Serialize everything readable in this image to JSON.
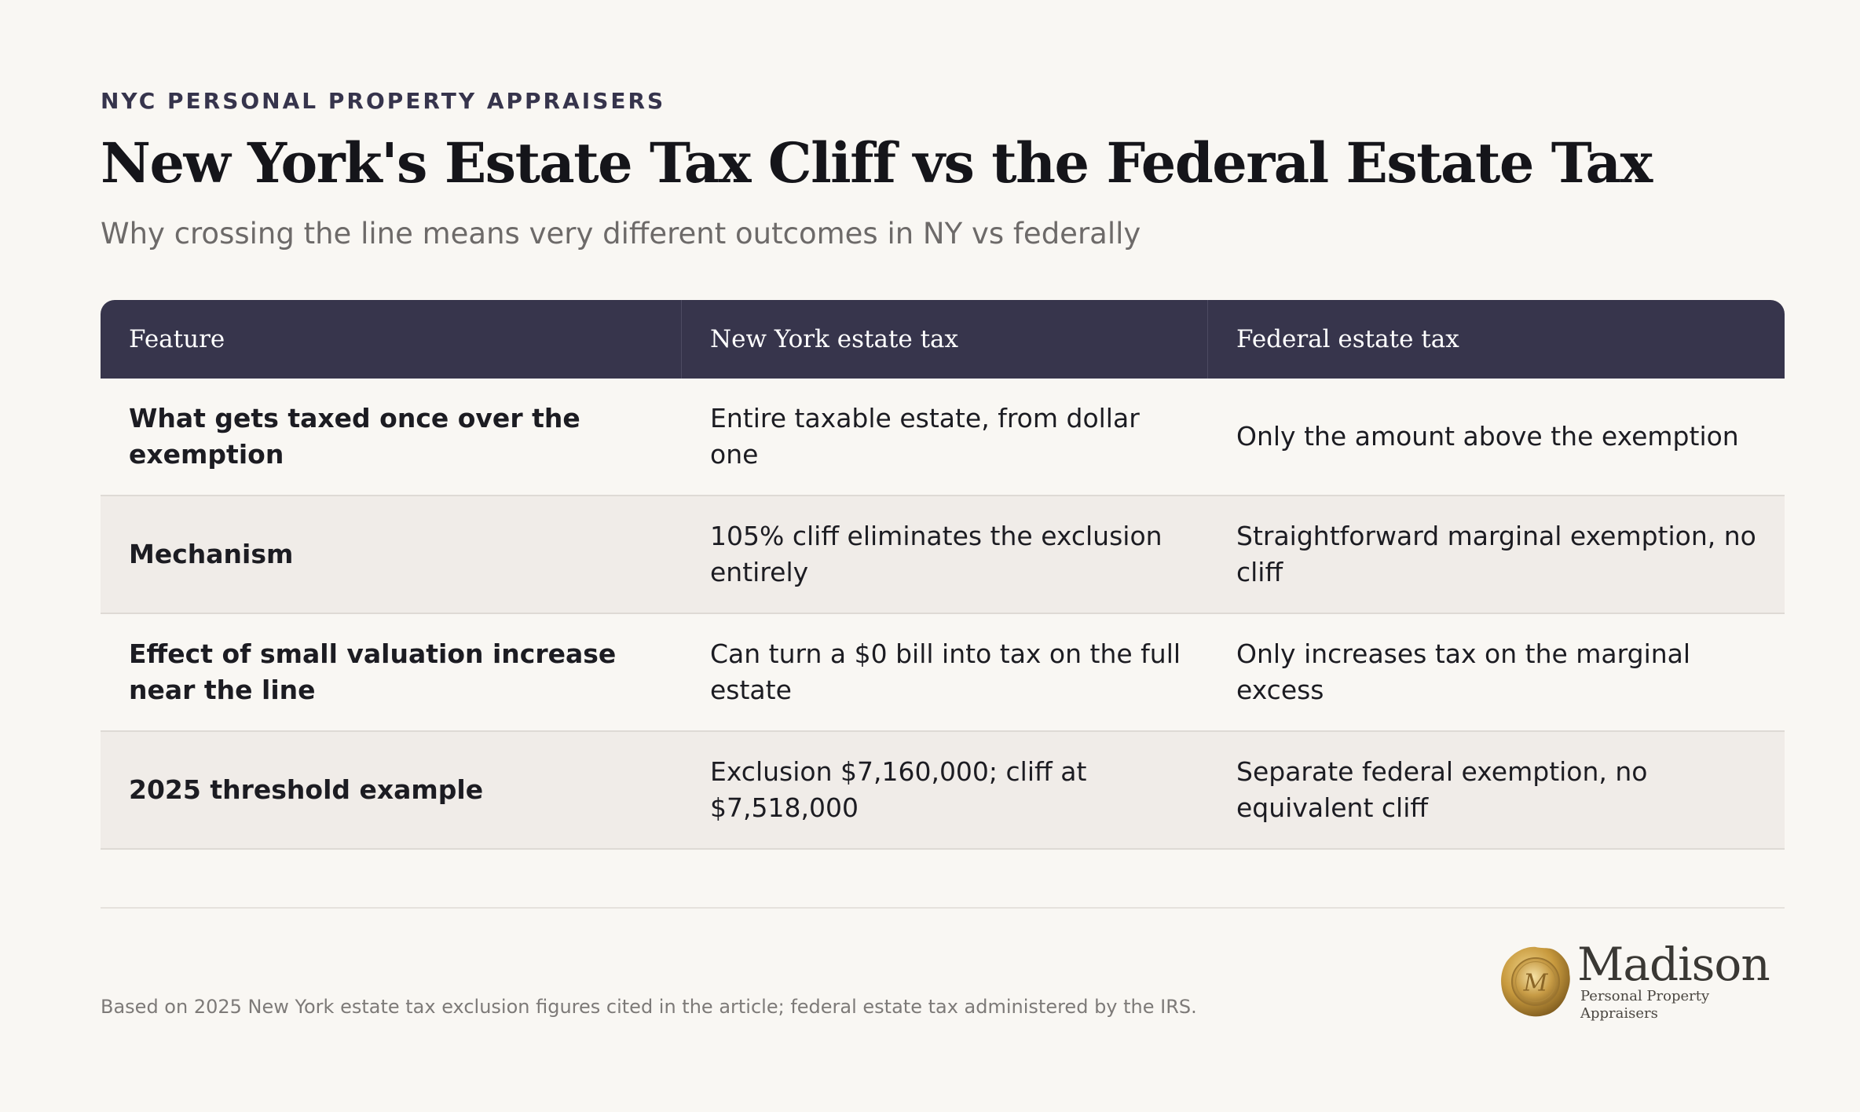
{
  "header": {
    "eyebrow": "NYC PERSONAL PROPERTY APPRAISERS",
    "title": "New York's Estate Tax Cliff vs the Federal Estate Tax",
    "subtitle": "Why crossing the line means very different outcomes in NY vs federally"
  },
  "table": {
    "columns": [
      "Feature",
      "New York estate tax",
      "Federal estate tax"
    ],
    "rows": [
      [
        "What gets taxed once over the exemption",
        "Entire taxable estate, from dollar one",
        "Only the amount above the exemption"
      ],
      [
        "Mechanism",
        "105% cliff eliminates the exclusion entirely",
        "Straightforward marginal exemption, no cliff"
      ],
      [
        "Effect of small valuation increase near the line",
        "Can turn a $0 bill into tax on the full estate",
        "Only increases tax on the marginal excess"
      ],
      [
        "2025 threshold example",
        "Exclusion $7,160,000; cliff at $7,518,000",
        "Separate federal exemption, no equivalent cliff"
      ]
    ]
  },
  "footer": {
    "note": "Based on 2025 New York estate tax exclusion figures cited in the article; federal estate tax administered by the IRS.",
    "logo_name": "Madison",
    "logo_tagline": "Personal Property Appraisers",
    "logo_monogram": "M"
  },
  "colors": {
    "background": "#f9f7f3",
    "header_bg": "#37354c",
    "alt_row": "#f0ece8",
    "gold": "#b8923a"
  }
}
